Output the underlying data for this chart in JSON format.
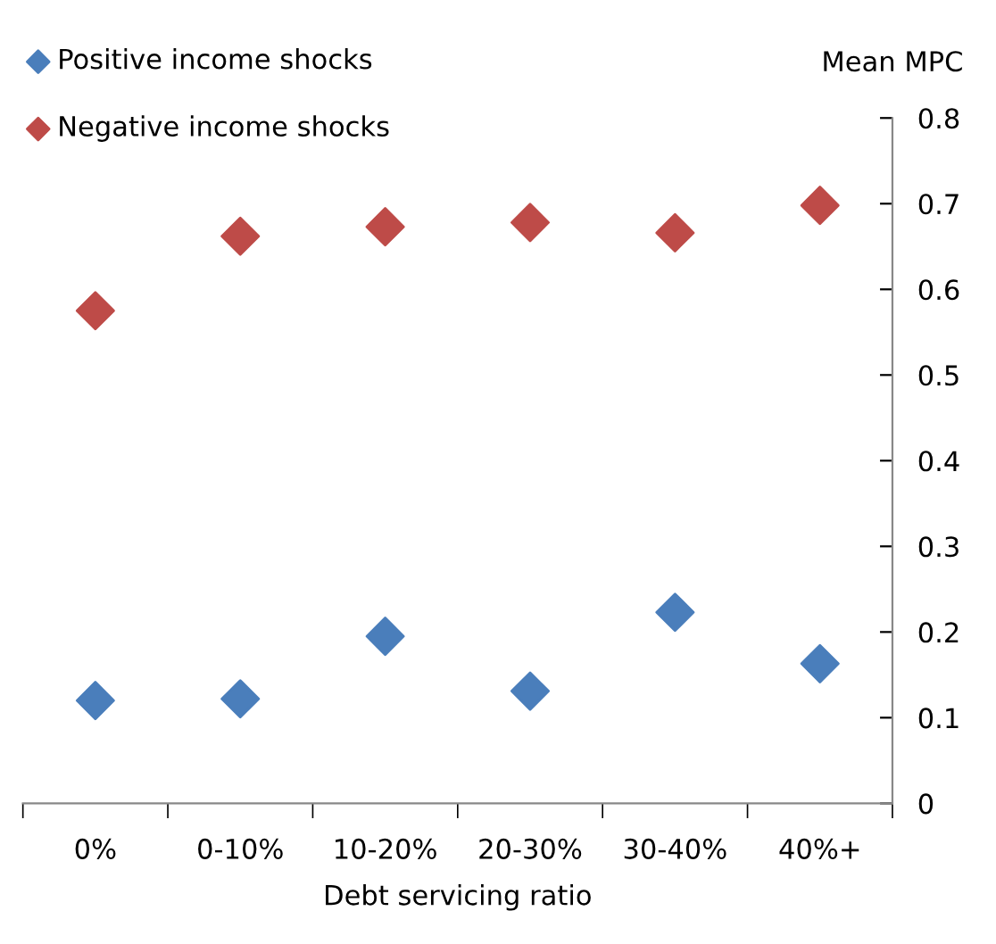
{
  "chart_data": {
    "type": "scatter",
    "xlabel": "Debt servicing ratio",
    "ylabel": "Mean MPC",
    "categories": [
      "0%",
      "0-10%",
      "10-20%",
      "20-30%",
      "30-40%",
      "40%+"
    ],
    "series": [
      {
        "name": "Positive income shocks",
        "color": "#4a7ebb",
        "values": [
          0.12,
          0.122,
          0.195,
          0.131,
          0.223,
          0.163
        ]
      },
      {
        "name": "Negative income shocks",
        "color": "#be4b48",
        "values": [
          0.575,
          0.662,
          0.673,
          0.678,
          0.666,
          0.698
        ]
      }
    ],
    "ylim": [
      0,
      0.8
    ],
    "yticks": [
      0,
      0.1,
      0.2,
      0.3,
      0.4,
      0.5,
      0.6,
      0.7,
      0.8
    ],
    "marker": "diamond",
    "grid": false,
    "legend": "top left"
  }
}
